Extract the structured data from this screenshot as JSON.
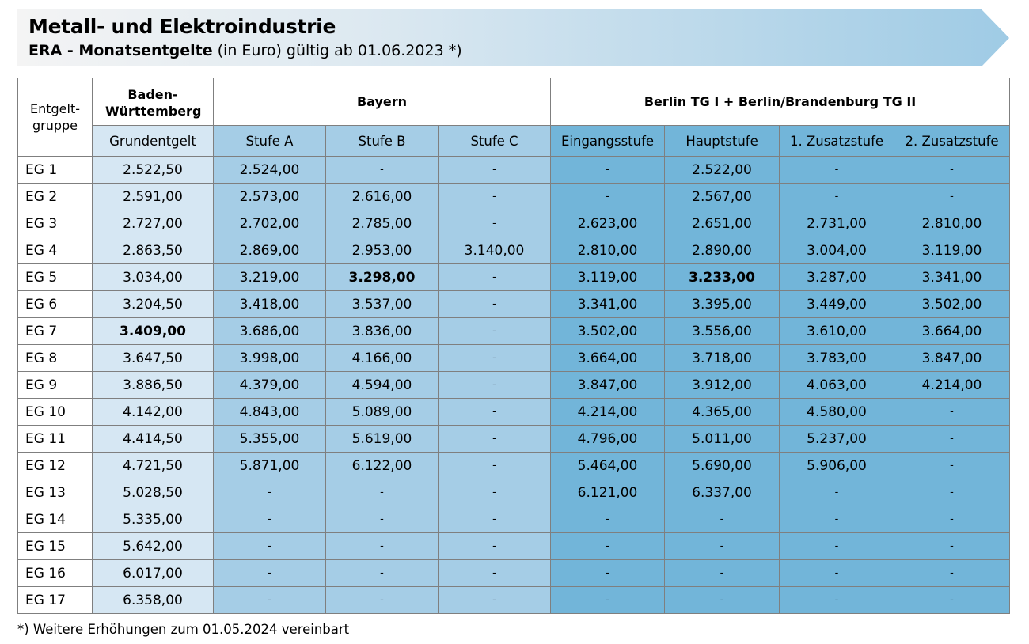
{
  "header": {
    "title": "Metall- und Elektroindustrie",
    "subtitle_bold": "ERA - Monatsentgelte",
    "subtitle_rest": " (in Euro) gültig ab 01.06.2023 *)"
  },
  "colors": {
    "banner_left": "#f2f2f2",
    "banner_right": "#9fcbe5",
    "bw_cell": "#d6e7f3",
    "bayern_cell": "#a5cde6",
    "berlin_cell": "#72b5d9"
  },
  "table": {
    "eg_header": "Entgelt-gruppe",
    "bw_header": "Baden-Württemberg",
    "bayern_header": "Bayern",
    "berlin_header": "Berlin TG I + Berlin/Brandenburg TG II",
    "sub_headers": [
      "Grundentgelt",
      "Stufe A",
      "Stufe B",
      "Stufe C",
      "Eingangsstufe",
      "Hauptstufe",
      "1. Zusatzstufe",
      "2. Zusatzstufe"
    ],
    "rows": [
      {
        "eg": "EG 1",
        "cells": [
          "2.522,50",
          "2.524,00",
          "-",
          "-",
          "-",
          "2.522,00",
          "-",
          "-"
        ]
      },
      {
        "eg": "EG 2",
        "cells": [
          "2.591,00",
          "2.573,00",
          "2.616,00",
          "-",
          "-",
          "2.567,00",
          "-",
          "-"
        ]
      },
      {
        "eg": "EG 3",
        "cells": [
          "2.727,00",
          "2.702,00",
          "2.785,00",
          "-",
          "2.623,00",
          "2.651,00",
          "2.731,00",
          "2.810,00"
        ]
      },
      {
        "eg": "EG 4",
        "cells": [
          "2.863,50",
          "2.869,00",
          "2.953,00",
          "3.140,00",
          "2.810,00",
          "2.890,00",
          "3.004,00",
          "3.119,00"
        ]
      },
      {
        "eg": "EG 5",
        "cells": [
          "3.034,00",
          "3.219,00",
          "3.298,00",
          "-",
          "3.119,00",
          "3.233,00",
          "3.287,00",
          "3.341,00"
        ],
        "bold": [
          2,
          5
        ]
      },
      {
        "eg": "EG 6",
        "cells": [
          "3.204,50",
          "3.418,00",
          "3.537,00",
          "-",
          "3.341,00",
          "3.395,00",
          "3.449,00",
          "3.502,00"
        ]
      },
      {
        "eg": "EG 7",
        "cells": [
          "3.409,00",
          "3.686,00",
          "3.836,00",
          "-",
          "3.502,00",
          "3.556,00",
          "3.610,00",
          "3.664,00"
        ],
        "bold": [
          0
        ]
      },
      {
        "eg": "EG 8",
        "cells": [
          "3.647,50",
          "3.998,00",
          "4.166,00",
          "-",
          "3.664,00",
          "3.718,00",
          "3.783,00",
          "3.847,00"
        ]
      },
      {
        "eg": "EG 9",
        "cells": [
          "3.886,50",
          "4.379,00",
          "4.594,00",
          "-",
          "3.847,00",
          "3.912,00",
          "4.063,00",
          "4.214,00"
        ]
      },
      {
        "eg": "EG 10",
        "cells": [
          "4.142,00",
          "4.843,00",
          "5.089,00",
          "-",
          "4.214,00",
          "4.365,00",
          "4.580,00",
          "-"
        ]
      },
      {
        "eg": "EG 11",
        "cells": [
          "4.414,50",
          "5.355,00",
          "5.619,00",
          "-",
          "4.796,00",
          "5.011,00",
          "5.237,00",
          "-"
        ]
      },
      {
        "eg": "EG 12",
        "cells": [
          "4.721,50",
          "5.871,00",
          "6.122,00",
          "-",
          "5.464,00",
          "5.690,00",
          "5.906,00",
          "-"
        ]
      },
      {
        "eg": "EG 13",
        "cells": [
          "5.028,50",
          "-",
          "-",
          "-",
          "6.121,00",
          "6.337,00",
          "-",
          "-"
        ]
      },
      {
        "eg": "EG 14",
        "cells": [
          "5.335,00",
          "-",
          "-",
          "-",
          "-",
          "-",
          "-",
          "-"
        ]
      },
      {
        "eg": "EG 15",
        "cells": [
          "5.642,00",
          "-",
          "-",
          "-",
          "-",
          "-",
          "-",
          "-"
        ]
      },
      {
        "eg": "EG 16",
        "cells": [
          "6.017,00",
          "-",
          "-",
          "-",
          "-",
          "-",
          "-",
          "-"
        ]
      },
      {
        "eg": "EG 17",
        "cells": [
          "6.358,00",
          "-",
          "-",
          "-",
          "-",
          "-",
          "-",
          "-"
        ]
      }
    ]
  },
  "footnote": "*) Weitere Erhöhungen zum 01.05.2024 vereinbart"
}
